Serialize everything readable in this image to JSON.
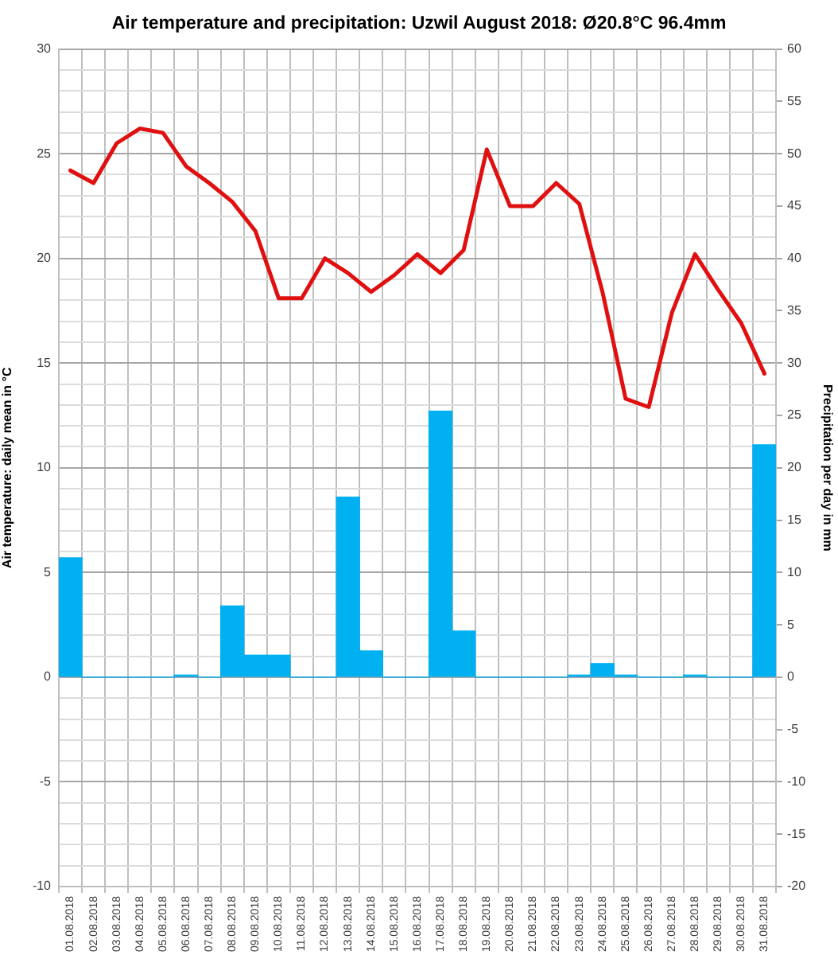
{
  "chart_data": {
    "type": "bar",
    "title": "Air temperature and precipitation: Uzwil August 2018: Ø20.8°C 96.4mm",
    "ylabel": "Air temperature: daily mean in °C",
    "y2label": "Precipitation per day in mm",
    "categories": [
      "01.08.2018",
      "02.08.2018",
      "03.08.2018",
      "04.08.2018",
      "05.08.2018",
      "06.08.2018",
      "07.08.2018",
      "08.08.2018",
      "09.08.2018",
      "10.08.2018",
      "11.08.2018",
      "12.08.2018",
      "13.08.2018",
      "14.08.2018",
      "15.08.2018",
      "16.08.2018",
      "17.08.2018",
      "18.08.2018",
      "19.08.2018",
      "20.08.2018",
      "21.08.2018",
      "22.08.2018",
      "23.08.2018",
      "24.08.2018",
      "25.08.2018",
      "26.08.2018",
      "27.08.2018",
      "28.08.2018",
      "29.08.2018",
      "30.08.2018",
      "31.08.2018"
    ],
    "series": [
      {
        "type": "line",
        "color": "#e01010",
        "values": [
          24.2,
          23.6,
          25.5,
          26.2,
          26.0,
          24.4,
          23.6,
          22.7,
          21.3,
          18.1,
          18.1,
          20.0,
          19.3,
          18.4,
          19.2,
          20.2,
          19.3,
          20.4,
          25.2,
          22.5,
          22.5,
          23.6,
          22.6,
          18.4,
          13.3,
          12.9,
          17.4,
          20.2,
          18.5,
          16.9,
          14.5
        ]
      },
      {
        "axis": "y2",
        "color": "#00b0f0",
        "values": [
          11.4,
          0,
          0,
          0,
          0,
          0.2,
          0,
          6.8,
          2.1,
          2.1,
          0,
          0,
          17.2,
          2.5,
          0,
          0,
          25.4,
          4.4,
          0,
          0,
          0,
          0,
          0.2,
          1.3,
          0.2,
          0,
          0,
          0.2,
          0,
          0,
          22.2
        ]
      }
    ],
    "ylim": [
      -10,
      30
    ],
    "yticks": [
      -10,
      {
        "value": -9,
        "label": null
      },
      {
        "value": -8,
        "label": null
      },
      {
        "value": -7,
        "label": null
      },
      {
        "value": -6,
        "label": null
      },
      -5,
      {
        "value": -4,
        "label": null
      },
      {
        "value": -3,
        "label": null
      },
      {
        "value": -2,
        "label": null
      },
      {
        "value": -1,
        "label": null
      },
      0,
      {
        "value": 1,
        "label": null
      },
      {
        "value": 2,
        "label": null
      },
      {
        "value": 3,
        "label": null
      },
      {
        "value": 4,
        "label": null
      },
      5,
      {
        "value": 6,
        "label": null
      },
      {
        "value": 7,
        "label": null
      },
      {
        "value": 8,
        "label": null
      },
      {
        "value": 9,
        "label": null
      },
      10,
      {
        "value": 11,
        "label": null
      },
      {
        "value": 12,
        "label": null
      },
      {
        "value": 13,
        "label": null
      },
      {
        "value": 14,
        "label": null
      },
      15,
      {
        "value": 16,
        "label": null
      },
      {
        "value": 17,
        "label": null
      },
      {
        "value": 18,
        "label": null
      },
      {
        "value": 19,
        "label": null
      },
      20,
      {
        "value": 21,
        "label": null
      },
      {
        "value": 22,
        "label": null
      },
      {
        "value": 23,
        "label": null
      },
      {
        "value": 24,
        "label": null
      },
      25,
      {
        "value": 26,
        "label": null
      },
      {
        "value": 27,
        "label": null
      },
      {
        "value": 28,
        "label": null
      },
      {
        "value": 29,
        "label": null
      },
      30
    ],
    "y2lim": [
      -20,
      60
    ],
    "y2ticks": [
      -20,
      -15,
      -10,
      -5,
      0,
      5,
      10,
      15,
      20,
      25,
      30,
      35,
      40,
      45,
      50,
      55,
      60
    ],
    "grid": true,
    "marker": "none",
    "line_style": "solid"
  }
}
